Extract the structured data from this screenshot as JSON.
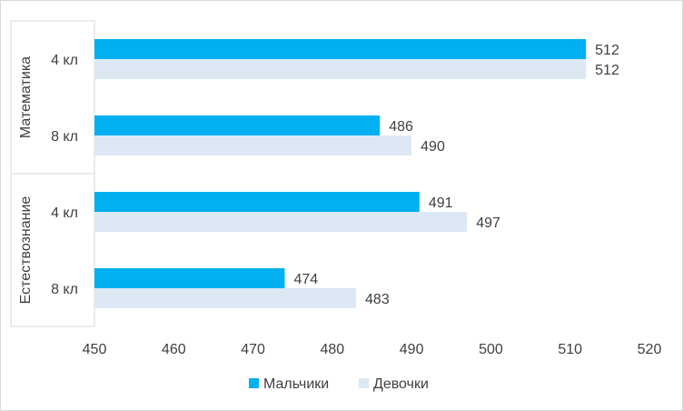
{
  "chart_data": {
    "type": "bar",
    "orientation": "horizontal",
    "groups": [
      {
        "label": "Математика",
        "categories": [
          "4 кл",
          "8 кл"
        ]
      },
      {
        "label": "Естествознание",
        "categories": [
          "4 кл",
          "8 кл"
        ]
      }
    ],
    "categories": [
      "Математика 4 кл",
      "Математика 8 кл",
      "Естествознание 4 кл",
      "Естествознание 8 кл"
    ],
    "series": [
      {
        "name": "Мальчики",
        "color": "#00b0f0",
        "values": [
          512,
          486,
          491,
          474
        ]
      },
      {
        "name": "Девочки",
        "color": "#dde8f5",
        "values": [
          512,
          490,
          497,
          483
        ]
      }
    ],
    "xlim": [
      450,
      520
    ],
    "xticks": [
      450,
      460,
      470,
      480,
      490,
      500,
      510,
      520
    ],
    "grid": false,
    "legend_position": "bottom",
    "title": "",
    "xlabel": "",
    "ylabel": ""
  }
}
